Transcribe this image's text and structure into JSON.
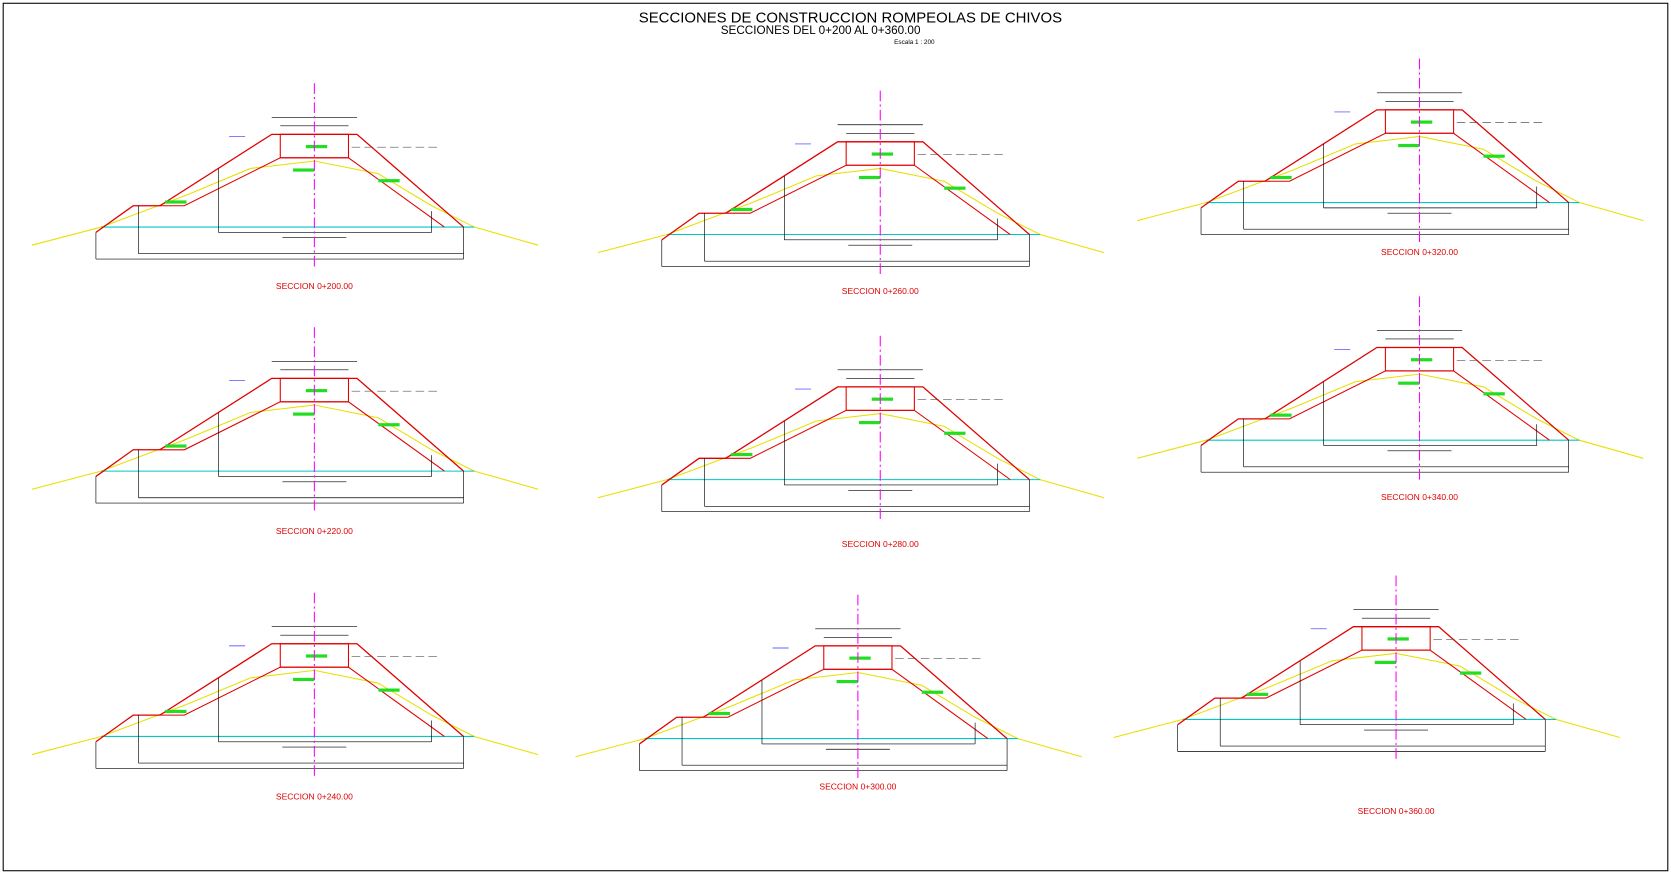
{
  "header": {
    "title": "SECCIONES DE CONSTRUCCION ROMPEOLAS DE CHIVOS",
    "subtitle": "SECCIONES DEL 0+200 AL 0+360.00",
    "scale": "Escala 1 : 200"
  },
  "sections": [
    {
      "label": "SECCION 0+200.00"
    },
    {
      "label": "SECCION 0+260.00"
    },
    {
      "label": "SECCION 0+320.00"
    },
    {
      "label": "SECCION 0+220.00"
    },
    {
      "label": "SECCION 0+280.00"
    },
    {
      "label": "SECCION 0+340.00"
    },
    {
      "label": "SECCION 0+240.00"
    },
    {
      "label": "SECCION 0+300.00"
    },
    {
      "label": "SECCION 0+360.00"
    }
  ]
}
